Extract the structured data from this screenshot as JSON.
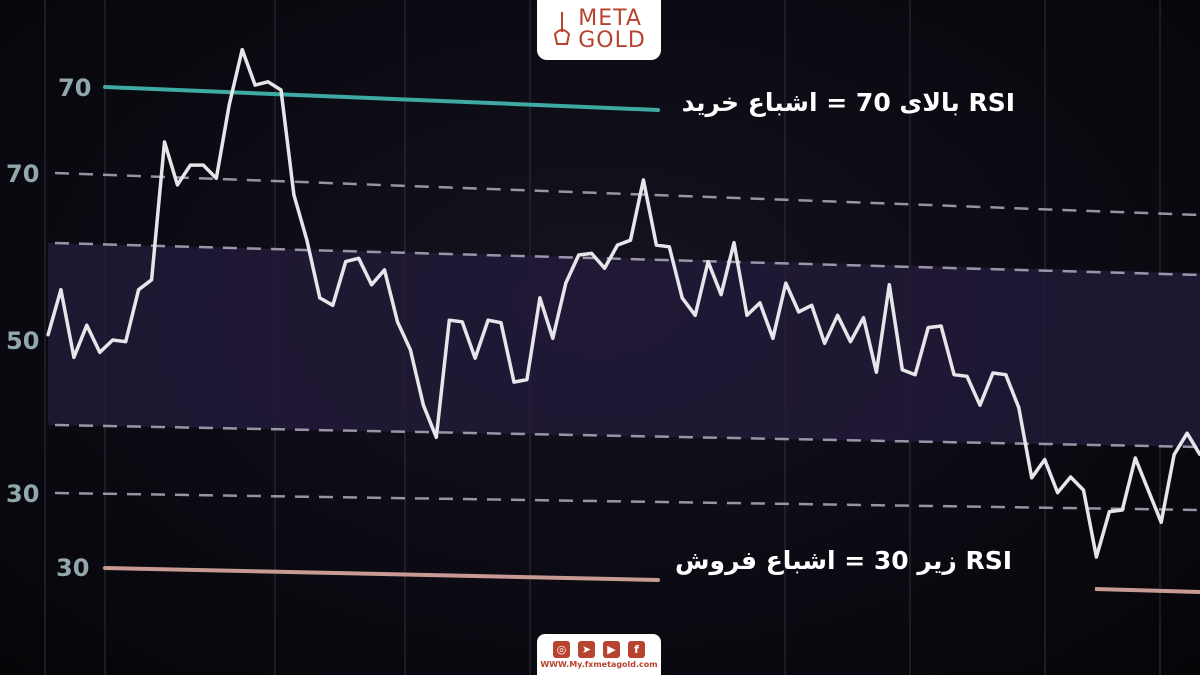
{
  "chart_data": {
    "type": "line",
    "title": "",
    "xlabel": "",
    "ylabel": "",
    "y_tick_labels": [
      "70",
      "70",
      "50",
      "30",
      "30"
    ],
    "series": [
      {
        "color": "#e6e6ea",
        "values": [
          50.6,
          56.1,
          47.9,
          51.8,
          48.5,
          50,
          49.8,
          56.1,
          57.3,
          74.0,
          68.8,
          71.2,
          71.2,
          69.6,
          78.5,
          85.2,
          80.9,
          81.3,
          80.3,
          67.6,
          62.1,
          55.1,
          54.2,
          59.5,
          59.9,
          56.7,
          58.5,
          52.2,
          48.8,
          42.1,
          38.2,
          52.4,
          52.2,
          47.8,
          52.4,
          52.1,
          44.9,
          45.2,
          55.1,
          50.2,
          56.9,
          60.3,
          60.5,
          58.7,
          61.5,
          62.1,
          69.4,
          61.5,
          61.3,
          55.1,
          53.0,
          59.5,
          55.5,
          61.8,
          53.0,
          54.5,
          50.2,
          56.9,
          53.4,
          54.2,
          49.6,
          53.0,
          49.8,
          52.7,
          46.1,
          56.7,
          46.4,
          45.8,
          51.5,
          51.7,
          45.8,
          45.6,
          42.1,
          46.0,
          45.8,
          41.8,
          33.3,
          35.5,
          31.5,
          33.4,
          31.8,
          23.7,
          29.2,
          29.4,
          35.7,
          31.8,
          27.9,
          36.1,
          38.7,
          36.1
        ]
      }
    ],
    "levels": {
      "overbought": 70,
      "oversold": 30
    },
    "colors": {
      "overbought_line": "#3fa9a3",
      "oversold_line": "#c99a94",
      "band": "#231b3a",
      "dashed": "#b9b6c6"
    },
    "grid": true,
    "annotations": {
      "overbought": "RSI بالای 70 = اشباع خرید",
      "oversold": "RSI زیر 30 = اشباع فروش"
    }
  },
  "brand": {
    "logo_line1": "META",
    "logo_line2": "GOLD",
    "website": "WWW.My.fxmetagold.com",
    "social_icons": [
      "instagram-icon",
      "telegram-icon",
      "youtube-icon",
      "facebook-icon"
    ],
    "color": "#b8432e"
  }
}
